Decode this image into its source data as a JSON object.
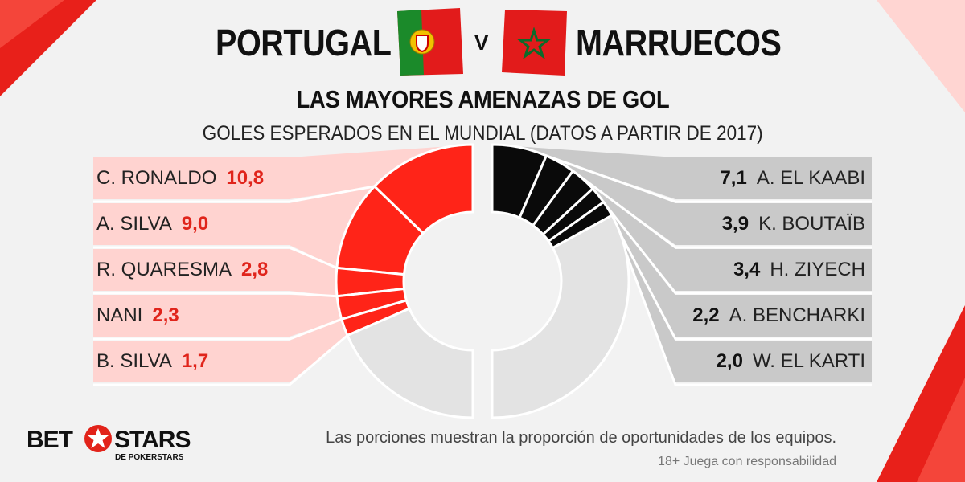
{
  "header": {
    "team_left": "PORTUGAL",
    "team_right": "MARRUECOS",
    "vs": "V",
    "title": "LAS MAYORES AMENAZAS DE GOL",
    "subtitle": "GOLES ESPERADOS EN EL MUNDIAL (DATOS A PARTIR DE 2017)"
  },
  "chart_data": {
    "type": "pie",
    "note": "Las porciones muestran la proporción de oportunidades de los equipos.",
    "series": [
      {
        "name": "PORTUGAL",
        "color": "#ff2418",
        "players": [
          {
            "name": "C. RONALDO",
            "label": "10,8",
            "value": 10.8
          },
          {
            "name": "A. SILVA",
            "label": "9,0",
            "value": 9.0
          },
          {
            "name": "R. QUARESMA",
            "label": "2,8",
            "value": 2.8
          },
          {
            "name": "NANI",
            "label": "2,3",
            "value": 2.3
          },
          {
            "name": "B. SILVA",
            "label": "1,7",
            "value": 1.7
          }
        ],
        "team_share_of_chances": 0.63
      },
      {
        "name": "MARRUECOS",
        "color": "#0a0a0a",
        "players": [
          {
            "name": "A. EL KAABI",
            "label": "7,1",
            "value": 7.1
          },
          {
            "name": "K. BOUTAÏB",
            "label": "3,9",
            "value": 3.9
          },
          {
            "name": "H. ZIYECH",
            "label": "3,4",
            "value": 3.4
          },
          {
            "name": "A. BENCHARKI",
            "label": "2,2",
            "value": 2.2
          },
          {
            "name": "W. EL KARTI",
            "label": "2,0",
            "value": 2.0
          }
        ],
        "team_share_of_chances": 0.34
      }
    ]
  },
  "footer": {
    "note": "Las porciones muestran la proporción de oportunidades de los equipos.",
    "disclaimer": "18+ Juega con responsabilidad",
    "brand_left": "BET",
    "brand_right": "STARS",
    "brand_sub": "DE POKERSTARS"
  }
}
